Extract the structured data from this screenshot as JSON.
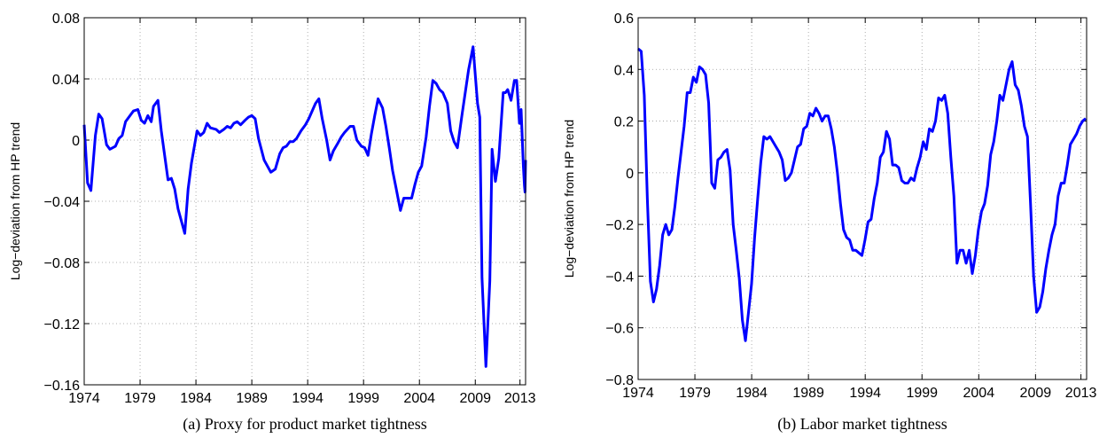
{
  "chart_data": [
    {
      "type": "line",
      "caption": "(a)  Proxy for product market tightness",
      "y_label": "Log−deviation from HP trend",
      "color": "#0000ff",
      "grid": true,
      "xlim": [
        1974,
        2013.5
      ],
      "xticks": [
        1974,
        1979,
        1984,
        1989,
        1994,
        1999,
        2004,
        2009,
        2013
      ],
      "ylim": [
        -0.16,
        0.08
      ],
      "yticks": [
        {
          "value": -0.16,
          "label": "−0.16"
        },
        {
          "value": -0.12,
          "label": "−0.12"
        },
        {
          "value": -0.08,
          "label": "−0.08"
        },
        {
          "value": -0.04,
          "label": "−0.04"
        },
        0,
        0.04,
        0.08
      ],
      "x": [
        1974.0,
        1974.3,
        1974.6,
        1975.0,
        1975.3,
        1975.6,
        1976.0,
        1976.3,
        1976.8,
        1977.1,
        1977.4,
        1977.7,
        1978.1,
        1978.4,
        1978.8,
        1979.1,
        1979.4,
        1979.7,
        1980.0,
        1980.2,
        1980.6,
        1980.9,
        1981.2,
        1981.5,
        1981.8,
        1982.1,
        1982.4,
        1983.0,
        1983.3,
        1983.6,
        1984.1,
        1984.4,
        1984.7,
        1985.0,
        1985.3,
        1985.8,
        1986.1,
        1986.5,
        1986.8,
        1987.1,
        1987.4,
        1987.7,
        1988.0,
        1988.4,
        1988.7,
        1989.0,
        1989.3,
        1989.6,
        1990.1,
        1990.4,
        1990.7,
        1991.1,
        1991.5,
        1991.8,
        1992.1,
        1992.4,
        1992.7,
        1993.0,
        1993.4,
        1993.8,
        1994.1,
        1994.4,
        1994.7,
        1995.0,
        1995.3,
        1995.7,
        1996.0,
        1996.3,
        1996.7,
        1997.0,
        1997.3,
        1997.8,
        1998.1,
        1998.4,
        1998.8,
        1999.1,
        1999.4,
        1999.7,
        2000.0,
        2000.3,
        2000.7,
        2001.0,
        2001.3,
        2001.6,
        2001.9,
        2002.3,
        2002.6,
        2002.9,
        2003.3,
        2003.6,
        2003.9,
        2004.2,
        2004.6,
        2004.9,
        2005.2,
        2005.5,
        2005.8,
        2006.1,
        2006.5,
        2006.8,
        2007.1,
        2007.4,
        2007.8,
        2008.1,
        2008.4,
        2008.8,
        2009.2,
        2009.4,
        2009.6,
        2009.95,
        2010.3,
        2010.5,
        2010.8,
        2011.1,
        2011.5,
        2011.7,
        2011.9,
        2012.2,
        2012.5,
        2012.7,
        2012.95,
        2013.1,
        2013.3,
        2013.4,
        2013.45,
        2013.5
      ],
      "values": [
        0.01,
        -0.028,
        -0.033,
        0.003,
        0.017,
        0.014,
        -0.003,
        -0.006,
        -0.004,
        0.001,
        0.003,
        0.012,
        0.016,
        0.019,
        0.02,
        0.013,
        0.011,
        0.016,
        0.012,
        0.022,
        0.026,
        0.006,
        -0.01,
        -0.026,
        -0.025,
        -0.032,
        -0.045,
        -0.061,
        -0.032,
        -0.015,
        0.006,
        0.003,
        0.005,
        0.011,
        0.008,
        0.007,
        0.005,
        0.007,
        0.009,
        0.008,
        0.011,
        0.012,
        0.01,
        0.013,
        0.015,
        0.016,
        0.014,
        0.001,
        -0.013,
        -0.017,
        -0.021,
        -0.019,
        -0.009,
        -0.005,
        -0.004,
        -0.001,
        -0.001,
        0.001,
        0.006,
        0.01,
        0.014,
        0.019,
        0.024,
        0.027,
        0.014,
        0,
        -0.013,
        -0.007,
        -0.002,
        0.002,
        0.005,
        0.009,
        0.009,
        0,
        -0.004,
        -0.005,
        -0.01,
        0.004,
        0.016,
        0.027,
        0.021,
        0.009,
        -0.005,
        -0.02,
        -0.031,
        -0.046,
        -0.038,
        -0.038,
        -0.038,
        -0.029,
        -0.021,
        -0.017,
        0.002,
        0.022,
        0.039,
        0.037,
        0.033,
        0.031,
        0.024,
        0.006,
        -0.001,
        -0.005,
        0.016,
        0.031,
        0.046,
        0.061,
        0.024,
        0.015,
        -0.09,
        -0.148,
        -0.092,
        -0.006,
        -0.027,
        -0.012,
        0.031,
        0.031,
        0.033,
        0.026,
        0.039,
        0.039,
        0.011,
        0.02,
        -0.017,
        -0.03,
        -0.034,
        -0.013
      ]
    },
    {
      "type": "line",
      "caption": "(b)  Labor market tightness",
      "y_label": "Log−deviation from HP trend",
      "color": "#0000ff",
      "grid": true,
      "xlim": [
        1974,
        2013.5
      ],
      "xticks": [
        1974,
        1979,
        1984,
        1989,
        1994,
        1999,
        2004,
        2009,
        2013
      ],
      "ylim": [
        -0.8,
        0.6
      ],
      "yticks": [
        {
          "value": -0.8,
          "label": "−0.8"
        },
        {
          "value": -0.6,
          "label": "−0.6"
        },
        {
          "value": -0.4,
          "label": "−0.4"
        },
        {
          "value": -0.2,
          "label": "−0.2"
        },
        0,
        0.2,
        0.4,
        0.6
      ],
      "x": [
        1974,
        1974.27,
        1974.54,
        1974.81,
        1975.08,
        1975.35,
        1975.62,
        1975.89,
        1976.16,
        1976.43,
        1976.7,
        1976.97,
        1977.24,
        1977.51,
        1977.78,
        1978.05,
        1978.32,
        1978.59,
        1978.86,
        1979.13,
        1979.4,
        1979.67,
        1979.94,
        1980.21,
        1980.48,
        1980.75,
        1981.02,
        1981.29,
        1981.56,
        1981.83,
        1982.1,
        1982.37,
        1982.64,
        1982.91,
        1983.18,
        1983.45,
        1983.72,
        1983.99,
        1984.26,
        1984.53,
        1984.8,
        1985.07,
        1985.34,
        1985.61,
        1985.88,
        1986.15,
        1986.42,
        1986.69,
        1986.96,
        1987.23,
        1987.5,
        1987.77,
        1988.04,
        1988.31,
        1988.58,
        1988.85,
        1989.12,
        1989.39,
        1989.66,
        1989.93,
        1990.2,
        1990.47,
        1990.74,
        1991.01,
        1991.28,
        1991.55,
        1991.82,
        1992.09,
        1992.36,
        1992.63,
        1992.9,
        1993.17,
        1993.44,
        1993.71,
        1993.98,
        1994.25,
        1994.52,
        1994.79,
        1995.06,
        1995.33,
        1995.6,
        1995.87,
        1996.14,
        1996.41,
        1996.68,
        1996.95,
        1997.22,
        1997.49,
        1997.76,
        1998.03,
        1998.3,
        1998.57,
        1998.84,
        1999.11,
        1999.38,
        1999.65,
        1999.92,
        2000.19,
        2000.46,
        2000.73,
        2001,
        2001.27,
        2001.54,
        2001.81,
        2002.08,
        2002.35,
        2002.62,
        2002.89,
        2003.16,
        2003.43,
        2003.7,
        2003.97,
        2004.24,
        2004.51,
        2004.78,
        2005.05,
        2005.32,
        2005.59,
        2005.86,
        2006.13,
        2006.4,
        2006.67,
        2006.94,
        2007.21,
        2007.48,
        2007.75,
        2008.02,
        2008.29,
        2008.56,
        2008.83,
        2009.1,
        2009.37,
        2009.64,
        2009.91,
        2010.18,
        2010.45,
        2010.72,
        2010.99,
        2011.26,
        2011.53,
        2011.8,
        2012.07,
        2012.34,
        2012.61,
        2012.88,
        2013.15,
        2013.42
      ],
      "values": [
        0.48,
        0.47,
        0.3,
        -0.1,
        -0.42,
        -0.5,
        -0.45,
        -0.36,
        -0.24,
        -0.2,
        -0.24,
        -0.22,
        -0.13,
        -0.02,
        0.08,
        0.18,
        0.31,
        0.31,
        0.37,
        0.35,
        0.41,
        0.4,
        0.38,
        0.27,
        -0.04,
        -0.06,
        0.05,
        0.06,
        0.08,
        0.09,
        0.01,
        -0.2,
        -0.3,
        -0.41,
        -0.57,
        -0.65,
        -0.54,
        -0.43,
        -0.25,
        -0.1,
        0.04,
        0.14,
        0.13,
        0.14,
        0.12,
        0.1,
        0.08,
        0.05,
        -0.03,
        -0.02,
        0,
        0.05,
        0.1,
        0.11,
        0.17,
        0.18,
        0.23,
        0.22,
        0.25,
        0.23,
        0.2,
        0.22,
        0.22,
        0.17,
        0.1,
        0,
        -0.12,
        -0.22,
        -0.25,
        -0.26,
        -0.3,
        -0.3,
        -0.31,
        -0.32,
        -0.26,
        -0.19,
        -0.18,
        -0.1,
        -0.04,
        0.06,
        0.08,
        0.16,
        0.13,
        0.03,
        0.03,
        0.02,
        -0.03,
        -0.04,
        -0.04,
        -0.02,
        -0.03,
        0.02,
        0.06,
        0.12,
        0.09,
        0.17,
        0.16,
        0.2,
        0.29,
        0.28,
        0.3,
        0.23,
        0.06,
        -0.09,
        -0.35,
        -0.3,
        -0.3,
        -0.35,
        -0.3,
        -0.39,
        -0.32,
        -0.22,
        -0.15,
        -0.12,
        -0.05,
        0.07,
        0.12,
        0.2,
        0.3,
        0.28,
        0.34,
        0.4,
        0.43,
        0.34,
        0.32,
        0.26,
        0.18,
        0.14,
        -0.12,
        -0.4,
        -0.54,
        -0.52,
        -0.46,
        -0.37,
        -0.3,
        -0.24,
        -0.2,
        -0.09,
        -0.04,
        -0.04,
        0.03,
        0.11,
        0.13,
        0.15,
        0.18,
        0.2,
        0.21
      ]
    }
  ]
}
